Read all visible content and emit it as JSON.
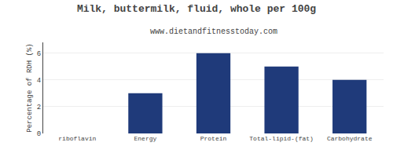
{
  "chart_data": {
    "type": "bar",
    "title": "Milk, buttermilk, fluid, whole per 100g",
    "subtitle": "www.dietandfitnesstoday.com",
    "ylabel": "Percentage of RDH (%)",
    "categories": [
      "riboflavin",
      "Energy",
      "Protein",
      "Total-lipid-(fat)",
      "Carbohydrate"
    ],
    "values": [
      0,
      3.0,
      6.0,
      5.0,
      4.0
    ],
    "color": "#1f3a7a",
    "ylim": [
      0,
      6.8
    ],
    "yticks": [
      0,
      2,
      4,
      6
    ],
    "grid": true
  }
}
